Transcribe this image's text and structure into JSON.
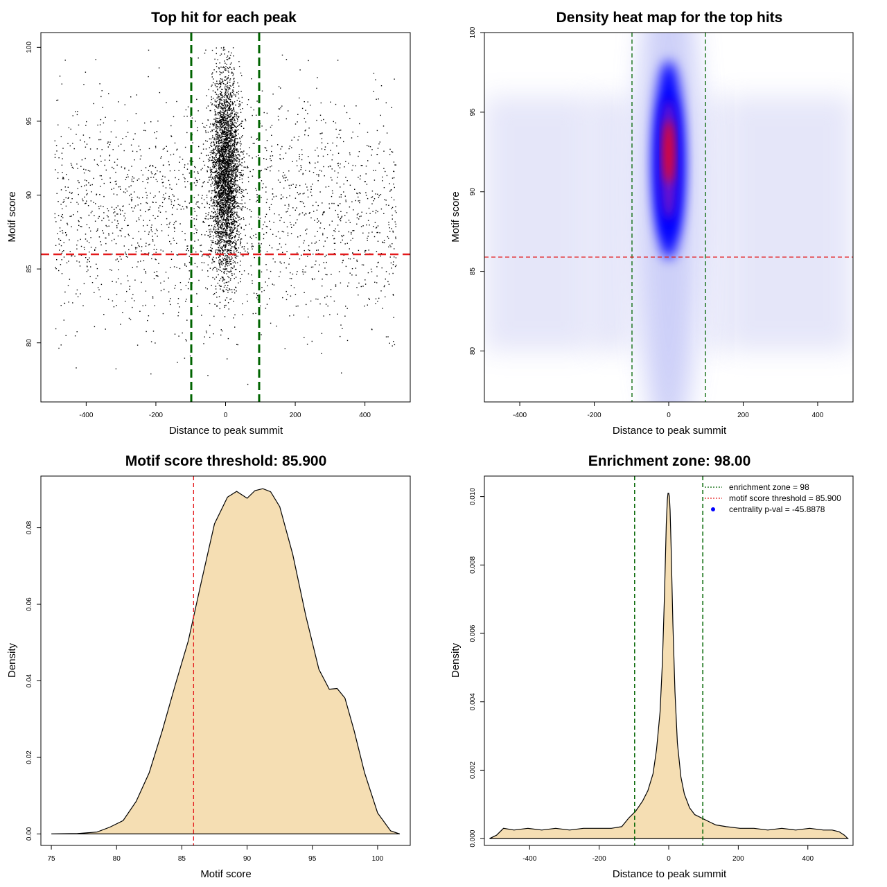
{
  "colors": {
    "background": "#ffffff",
    "axis": "#000000",
    "points": "#000000",
    "green_line": "#006400",
    "red_line": "#e41a1c",
    "density_fill": "#f5deb3",
    "heat_low": "#ffffff",
    "heat_mid": "#0000ff",
    "heat_high": "#ff0000",
    "legend_point": "#0000ff"
  },
  "chart_data": [
    {
      "type": "scatter",
      "title": "Top hit for each peak",
      "xlabel": "Distance to peak summit",
      "ylabel": "Motif score",
      "xlim": [
        -530,
        530
      ],
      "ylim": [
        76,
        101
      ],
      "xticks": [
        -400,
        -200,
        0,
        200,
        400
      ],
      "yticks": [
        80,
        85,
        90,
        95,
        100
      ],
      "vlines": [
        -98,
        98
      ],
      "hline": 85.9,
      "grid": false,
      "point_distribution": {
        "central": {
          "x_mean": 0,
          "x_sd": 20,
          "y_mean": 91.5,
          "y_sd": 3.3,
          "approx_count": 3600
        },
        "background": {
          "x_range": [
            -490,
            490
          ],
          "y_mean": 89,
          "y_sd": 4.0,
          "approx_count": 2000
        }
      }
    },
    {
      "type": "heatmap",
      "title": "Density heat map for the top hits",
      "xlabel": "Distance to peak summit",
      "ylabel": "Motif score",
      "xlim": [
        -495,
        495
      ],
      "ylim": [
        76.8,
        100
      ],
      "xticks": [
        -400,
        -200,
        0,
        200,
        400
      ],
      "yticks": [
        80,
        85,
        90,
        95,
        100
      ],
      "vlines": [
        -98,
        98
      ],
      "hline": 85.9,
      "hotspot": {
        "x": 0,
        "y": 92.5
      }
    },
    {
      "type": "area",
      "title": "Motif score threshold: 85.900",
      "xlabel": "Motif score",
      "ylabel": "Density",
      "xlim": [
        74.2,
        102.5
      ],
      "ylim": [
        -0.003,
        0.0935
      ],
      "xticks": [
        75,
        80,
        85,
        90,
        95,
        100
      ],
      "yticks": [
        0.0,
        0.02,
        0.04,
        0.06,
        0.08
      ],
      "ytick_labels": [
        "0.00",
        "0.02",
        "0.04",
        "0.06",
        "0.08"
      ],
      "vline": 85.9,
      "x": [
        75.0,
        77.0,
        78.5,
        79.5,
        80.5,
        81.5,
        82.5,
        83.5,
        84.5,
        85.5,
        86.5,
        87.5,
        88.5,
        89.2,
        90.0,
        90.6,
        91.2,
        91.8,
        92.5,
        93.5,
        94.5,
        95.5,
        96.3,
        96.9,
        97.5,
        98.2,
        99.0,
        100.0,
        101.0,
        101.7
      ],
      "y": [
        0.0,
        0.0001,
        0.0005,
        0.0018,
        0.0035,
        0.0085,
        0.016,
        0.027,
        0.039,
        0.0505,
        0.066,
        0.081,
        0.088,
        0.0895,
        0.0877,
        0.0897,
        0.0902,
        0.0894,
        0.0855,
        0.073,
        0.057,
        0.043,
        0.0378,
        0.038,
        0.0355,
        0.027,
        0.016,
        0.0055,
        0.0008,
        0.0
      ]
    },
    {
      "type": "area",
      "title": "Enrichment zone: 98.00",
      "xlabel": "Distance to peak summit",
      "ylabel": "Density",
      "xlim": [
        -530,
        530
      ],
      "ylim": [
        -0.0002,
        0.0106
      ],
      "xticks": [
        -400,
        -200,
        0,
        200,
        400
      ],
      "yticks": [
        0.0,
        0.002,
        0.004,
        0.006,
        0.008,
        0.01
      ],
      "ytick_labels": [
        "0.000",
        "0.002",
        "0.004",
        "0.006",
        "0.008",
        "0.010"
      ],
      "vlines": [
        -98,
        98
      ],
      "x": [
        -515,
        -495,
        -475,
        -445,
        -405,
        -365,
        -325,
        -285,
        -245,
        -205,
        -165,
        -135,
        -115,
        -95,
        -75,
        -60,
        -45,
        -35,
        -25,
        -18,
        -12,
        -7,
        -4,
        -2,
        0,
        2,
        4,
        7,
        12,
        18,
        25,
        35,
        45,
        60,
        75,
        95,
        115,
        135,
        165,
        205,
        245,
        285,
        325,
        365,
        405,
        445,
        470,
        490,
        505,
        515
      ],
      "y": [
        0.0,
        0.0001,
        0.0003,
        0.00025,
        0.0003,
        0.00025,
        0.0003,
        0.00025,
        0.0003,
        0.0003,
        0.0003,
        0.00035,
        0.0006,
        0.0008,
        0.0011,
        0.0014,
        0.0019,
        0.0026,
        0.0037,
        0.0052,
        0.0072,
        0.0092,
        0.0099,
        0.0101,
        0.0101,
        0.01,
        0.0096,
        0.0085,
        0.0063,
        0.0043,
        0.0028,
        0.0018,
        0.0013,
        0.0009,
        0.0007,
        0.0006,
        0.0005,
        0.0004,
        0.00035,
        0.0003,
        0.0003,
        0.00025,
        0.0003,
        0.00025,
        0.0003,
        0.00025,
        0.00025,
        0.0002,
        0.0001,
        0.0
      ],
      "legend": {
        "position": "top-right",
        "entries": [
          {
            "label": "enrichment zone = 98",
            "style": "dotted-green"
          },
          {
            "label": "motif score threshold = 85.900",
            "style": "dotted-red"
          },
          {
            "label": "centrality p-val = -45.8878",
            "style": "blue-point"
          }
        ]
      }
    }
  ]
}
